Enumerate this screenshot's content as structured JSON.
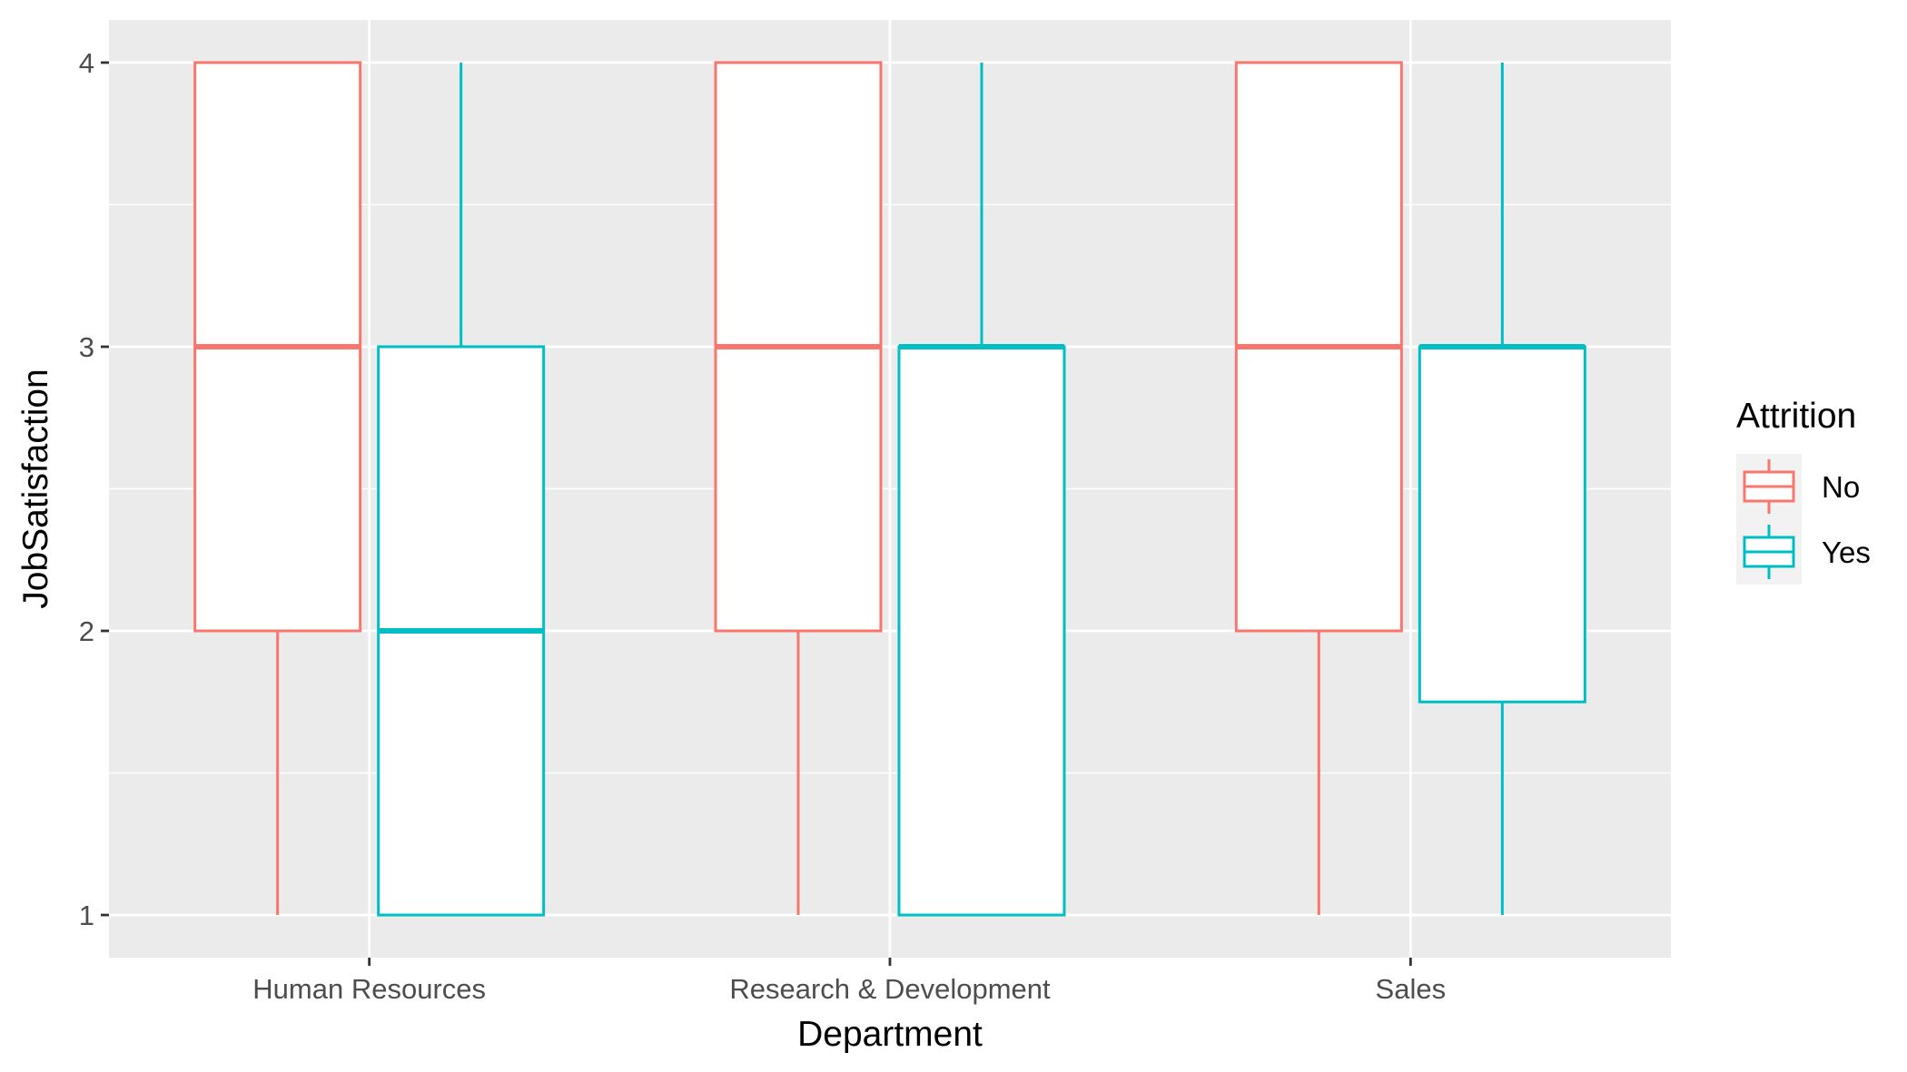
{
  "chart_data": {
    "type": "boxplot",
    "xlabel": "Department",
    "ylabel": "JobSatisfaction",
    "categories": [
      "Human Resources",
      "Research & Development",
      "Sales"
    ],
    "yticks": [
      1,
      2,
      3,
      4
    ],
    "ylim": [
      0.85,
      4.15
    ],
    "grid": true,
    "legend": {
      "title": "Attrition",
      "position": "right"
    },
    "series": [
      {
        "name": "No",
        "color": "#F8766D",
        "boxes": [
          {
            "min": 1,
            "q1": 2,
            "median": 3,
            "q3": 4,
            "max": 4
          },
          {
            "min": 1,
            "q1": 2,
            "median": 3,
            "q3": 4,
            "max": 4
          },
          {
            "min": 1,
            "q1": 2,
            "median": 3,
            "q3": 4,
            "max": 4
          }
        ]
      },
      {
        "name": "Yes",
        "color": "#00BFC4",
        "boxes": [
          {
            "min": 1,
            "q1": 1,
            "median": 2,
            "q3": 3,
            "max": 4
          },
          {
            "min": 1,
            "q1": 1,
            "median": 3,
            "q3": 3,
            "max": 4
          },
          {
            "min": 1,
            "q1": 1.75,
            "median": 3,
            "q3": 3,
            "max": 4
          }
        ]
      }
    ]
  },
  "colors": {
    "panel_background": "#EBEBEB",
    "grid_major": "#FFFFFF",
    "axis_text": "#4D4D4D",
    "title_text": "#000000"
  }
}
